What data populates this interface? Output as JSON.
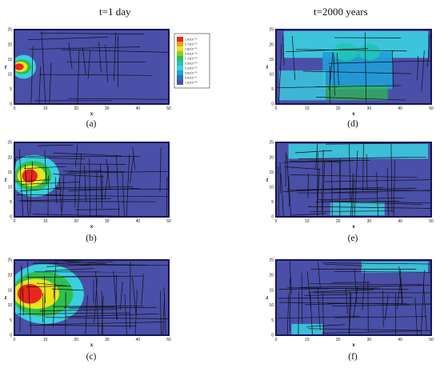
{
  "column_titles": {
    "left": "t=1 day",
    "right": "t=2000 years"
  },
  "panels": [
    {
      "id": "a",
      "caption": "(a)",
      "column": "left",
      "axis_x_label": "x",
      "axis_z_label": "z"
    },
    {
      "id": "b",
      "caption": "(b)",
      "column": "left",
      "axis_x_label": "x",
      "axis_z_label": "z"
    },
    {
      "id": "c",
      "caption": "(c)",
      "column": "left",
      "axis_x_label": "x",
      "axis_z_label": "z"
    },
    {
      "id": "d",
      "caption": "(d)",
      "column": "right",
      "axis_x_label": "x",
      "axis_z_label": "z"
    },
    {
      "id": "e",
      "caption": "(e)",
      "column": "right",
      "axis_x_label": "x",
      "axis_z_label": "z"
    },
    {
      "id": "f",
      "caption": "(f)",
      "column": "right",
      "axis_x_label": "x",
      "axis_z_label": "z"
    }
  ],
  "axes": {
    "x_ticks": [
      "0",
      "10",
      "20",
      "30",
      "40",
      "50"
    ],
    "z_ticks": [
      "0",
      "5",
      "10",
      "15",
      "20",
      "25"
    ]
  },
  "legend": {
    "entries": [
      {
        "label": "1.0x10⁻⁰²",
        "color": "#e8261c"
      },
      {
        "label": "2.7x10⁻⁰³",
        "color": "#f2a21c"
      },
      {
        "label": "2.8x10⁻⁰³",
        "color": "#eee31a"
      },
      {
        "label": "4.0x10⁻⁰⁴",
        "color": "#7fd12c"
      },
      {
        "label": "7.7x10⁻⁰⁵",
        "color": "#2fbf4d"
      },
      {
        "label": "3.3x10⁻⁰⁵",
        "color": "#20c5b5"
      },
      {
        "label": "2.2x10⁻⁰⁵",
        "color": "#3ad0e0"
      },
      {
        "label": "5.6x10⁻⁰⁶",
        "color": "#1f9fd8"
      },
      {
        "label": "6.0x10⁻⁰⁷",
        "color": "#2a6fc0"
      },
      {
        "label": "1.0x10⁻⁰⁸",
        "color": "#4a4fb0"
      }
    ]
  },
  "colors": {
    "background_field": "#4a4fa8",
    "fracture": "#111111",
    "frame": "#15155a"
  }
}
